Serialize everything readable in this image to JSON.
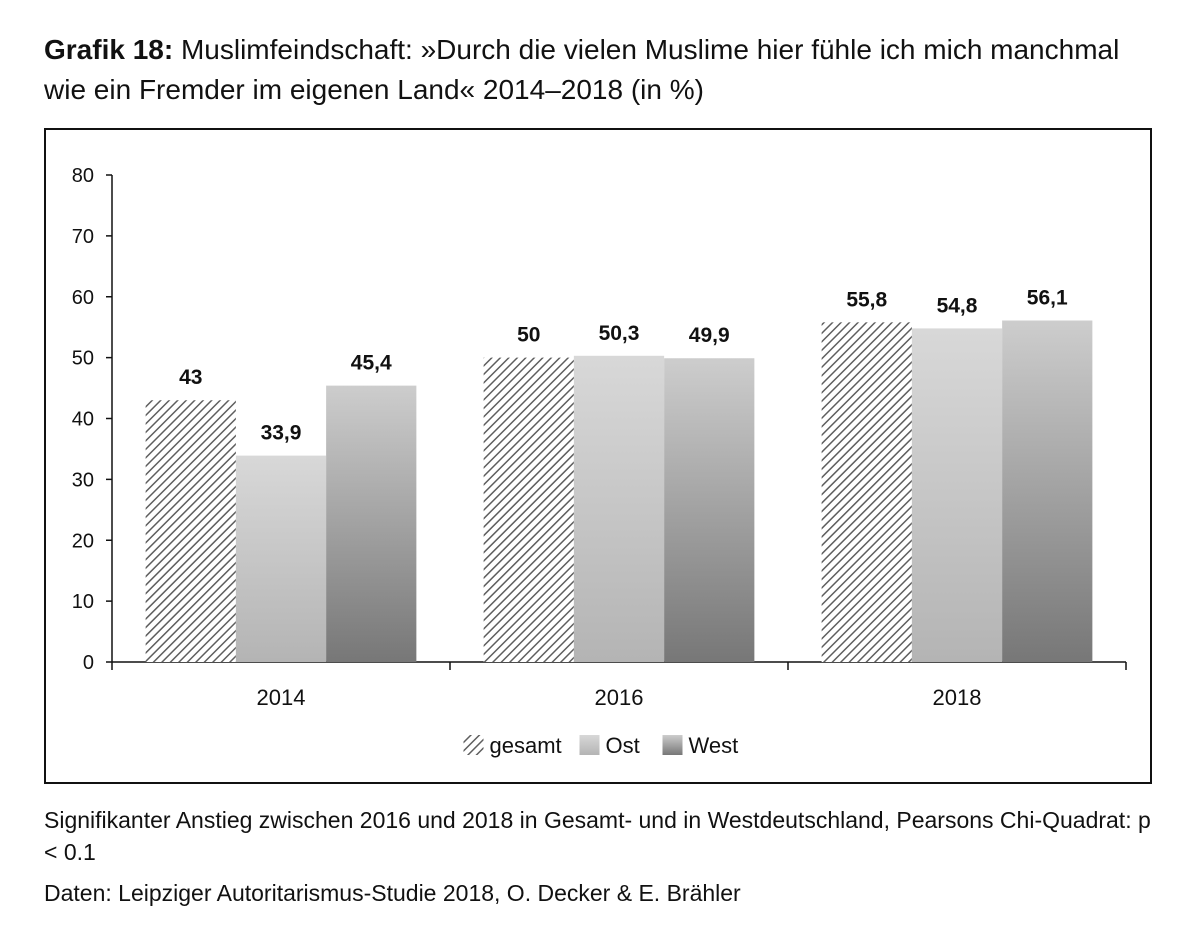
{
  "title": {
    "bold": "Grafik 18:",
    "text": "Muslimfeindschaft: »Durch die vielen Muslime hier fühle ich mich manchmal wie ein Fremder im eigenen Land« 2014–2018 (in %)"
  },
  "note": "Signifikanter Anstieg zwischen 2016 und 2018 in Gesamt- und in Westdeutschland, Pearsons Chi-Quadrat: p < 0.1",
  "source": "Daten: Leipziger Autoritarismus-Studie 2018, O. Decker & E. Brähler",
  "chart_data": {
    "type": "bar",
    "categories": [
      "2014",
      "2016",
      "2018"
    ],
    "series": [
      {
        "name": "gesamt",
        "values": [
          43,
          50,
          55.8
        ],
        "labels": [
          "43",
          "50",
          "55,8"
        ],
        "fill": "hatch"
      },
      {
        "name": "Ost",
        "values": [
          33.9,
          50.3,
          54.8
        ],
        "labels": [
          "33,9",
          "50,3",
          "54,8"
        ],
        "fill": "light-gradient"
      },
      {
        "name": "West",
        "values": [
          45.4,
          49.9,
          56.1
        ],
        "labels": [
          "45,4",
          "49,9",
          "56,1"
        ],
        "fill": "dark-gradient"
      }
    ],
    "ylim": [
      0,
      80
    ],
    "yticks": [
      "0",
      "10",
      "20",
      "30",
      "40",
      "50",
      "60",
      "70",
      "80"
    ],
    "grid": false,
    "legend_position": "bottom-center",
    "colors": {
      "hatch_stroke": "#5e5e5e",
      "light_top": "#d8d8d8",
      "light_bottom": "#b4b4b4",
      "dark_top": "#cdcdcd",
      "dark_bottom": "#777777",
      "axis": "#111111"
    }
  }
}
